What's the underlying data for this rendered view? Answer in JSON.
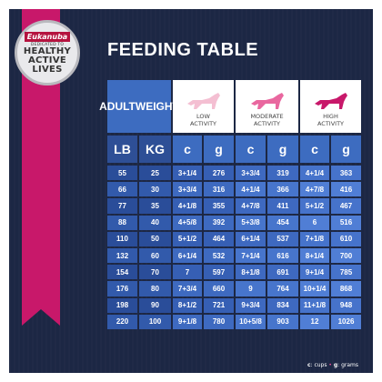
{
  "badge": {
    "brand": "Eukanuba",
    "dedicated": "DEDICATED TO",
    "line1": "HEALTHY",
    "line2": "ACTIVE",
    "line3": "LIVES"
  },
  "title": "FEEDING TABLE",
  "adult_weight": {
    "line1": "ADULT",
    "line2": "WEIGHT"
  },
  "activity": [
    {
      "line1": "LOW",
      "line2": "ACTIVITY",
      "color": "#f4bfd2"
    },
    {
      "line1": "MODERATE",
      "line2": "ACTIVITY",
      "color": "#e9679f"
    },
    {
      "line1": "HIGH",
      "line2": "ACTIVITY",
      "color": "#c8186a"
    }
  ],
  "headers": {
    "lb": "LB",
    "kg": "KG",
    "c": "c",
    "g": "g"
  },
  "rows": [
    [
      "55",
      "25",
      "3+1/4",
      "276",
      "3+3/4",
      "319",
      "4+1/4",
      "363"
    ],
    [
      "66",
      "30",
      "3+3/4",
      "316",
      "4+1/4",
      "366",
      "4+7/8",
      "416"
    ],
    [
      "77",
      "35",
      "4+1/8",
      "355",
      "4+7/8",
      "411",
      "5+1/2",
      "467"
    ],
    [
      "88",
      "40",
      "4+5/8",
      "392",
      "5+3/8",
      "454",
      "6",
      "516"
    ],
    [
      "110",
      "50",
      "5+1/2",
      "464",
      "6+1/4",
      "537",
      "7+1/8",
      "610"
    ],
    [
      "132",
      "60",
      "6+1/4",
      "532",
      "7+1/4",
      "616",
      "8+1/4",
      "700"
    ],
    [
      "154",
      "70",
      "7",
      "597",
      "8+1/8",
      "691",
      "9+1/4",
      "785"
    ],
    [
      "176",
      "80",
      "7+3/4",
      "660",
      "9",
      "764",
      "10+1/4",
      "868"
    ],
    [
      "198",
      "90",
      "8+1/2",
      "721",
      "9+3/4",
      "834",
      "11+1/8",
      "948"
    ],
    [
      "220",
      "100",
      "9+1/8",
      "780",
      "10+5/8",
      "903",
      "12",
      "1026"
    ]
  ],
  "legend": {
    "c": "c",
    "c_text": ": cups",
    "sep": " • ",
    "g": "g",
    "g_text": ": grams"
  }
}
